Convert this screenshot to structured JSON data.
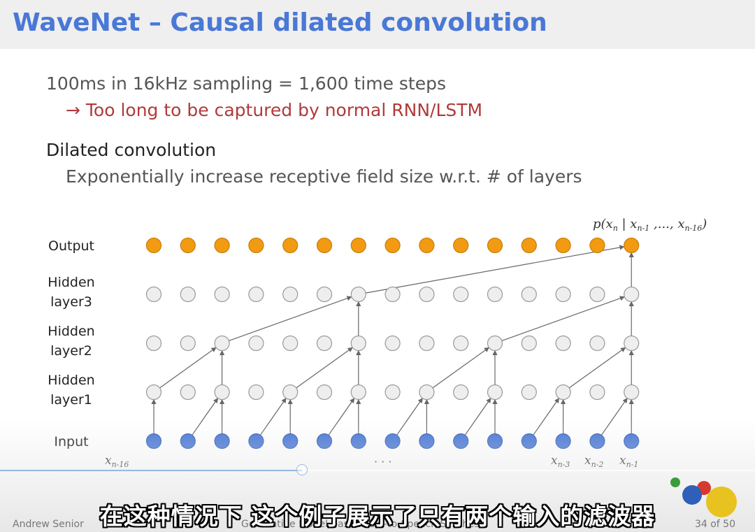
{
  "slide": {
    "title": "WaveNet – Causal dilated convolution",
    "line1": "100ms in 16kHz sampling = 1,600 time steps",
    "line2": "→ Too long to be captured by normal RNN/LSTM",
    "line3": "Dilated convolution",
    "line4": "Exponentially increase receptive field size w.r.t. # of layers"
  },
  "diagram": {
    "layers": [
      {
        "label": [
          "Output"
        ],
        "color": "#f29b12",
        "stroke": "#c97c08"
      },
      {
        "label": [
          "Hidden",
          "layer3"
        ],
        "color": "#eeeeee",
        "stroke": "#999999"
      },
      {
        "label": [
          "Hidden",
          "layer2"
        ],
        "color": "#eeeeee",
        "stroke": "#999999"
      },
      {
        "label": [
          "Hidden",
          "layer1"
        ],
        "color": "#eeeeee",
        "stroke": "#999999"
      },
      {
        "label": [
          "Input"
        ],
        "color": "#4a78d6",
        "stroke": "#3560b8"
      }
    ],
    "nodes_per_layer": 15,
    "dilations": [
      1,
      2,
      4,
      8
    ],
    "output_label": "p(xn | xn-1 ,..., xn-16)",
    "input_labels": {
      "first": "xn-16",
      "ellipsis": "· · ·",
      "last": [
        "xn-3",
        "xn-2",
        "xn-1"
      ]
    }
  },
  "footer": {
    "author": "Andrew Senior",
    "talk": "Generative Model-based Text-to-Speech Synthesis",
    "page": "34 of 50"
  },
  "video": {
    "subtitle": "在这种情况下 这个例子展示了只有两个输入的滤波器",
    "progress": 0.4
  }
}
